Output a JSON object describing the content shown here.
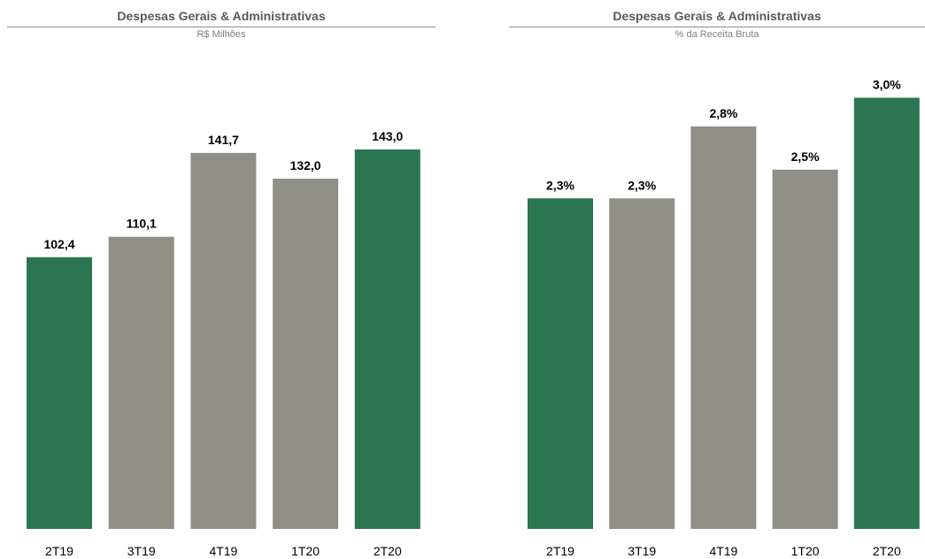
{
  "chart_data": [
    {
      "type": "bar",
      "title": "Despesas Gerais & Administrativas",
      "subtitle": "R$ Milhões",
      "categories": [
        "2T19",
        "3T19",
        "4T19",
        "1T20",
        "2T20"
      ],
      "values": [
        102.4,
        110.1,
        141.7,
        132.0,
        143.0
      ],
      "value_labels": [
        "102,4",
        "110,1",
        "141,7",
        "132,0",
        "143,0"
      ],
      "bar_colors": [
        "#2b7650",
        "#8f8f86",
        "#8f8f86",
        "#8f8f86",
        "#2b7650"
      ],
      "ylim": [
        0,
        163
      ],
      "grid": false,
      "legend": "none"
    },
    {
      "type": "bar",
      "title": "Despesas Gerais & Administrativas",
      "subtitle": "% da Receita Bruta",
      "categories": [
        "2T19",
        "3T19",
        "4T19",
        "1T20",
        "2T20"
      ],
      "values": [
        2.3,
        2.3,
        2.8,
        2.5,
        3.0
      ],
      "value_labels": [
        "2,3%",
        "2,3%",
        "2,8%",
        "2,5%",
        "3,0%"
      ],
      "bar_colors": [
        "#2b7650",
        "#8f8f86",
        "#8f8f86",
        "#8f8f86",
        "#2b7650"
      ],
      "ylim": [
        0,
        3.2
      ],
      "grid": false,
      "legend": "none"
    }
  ]
}
